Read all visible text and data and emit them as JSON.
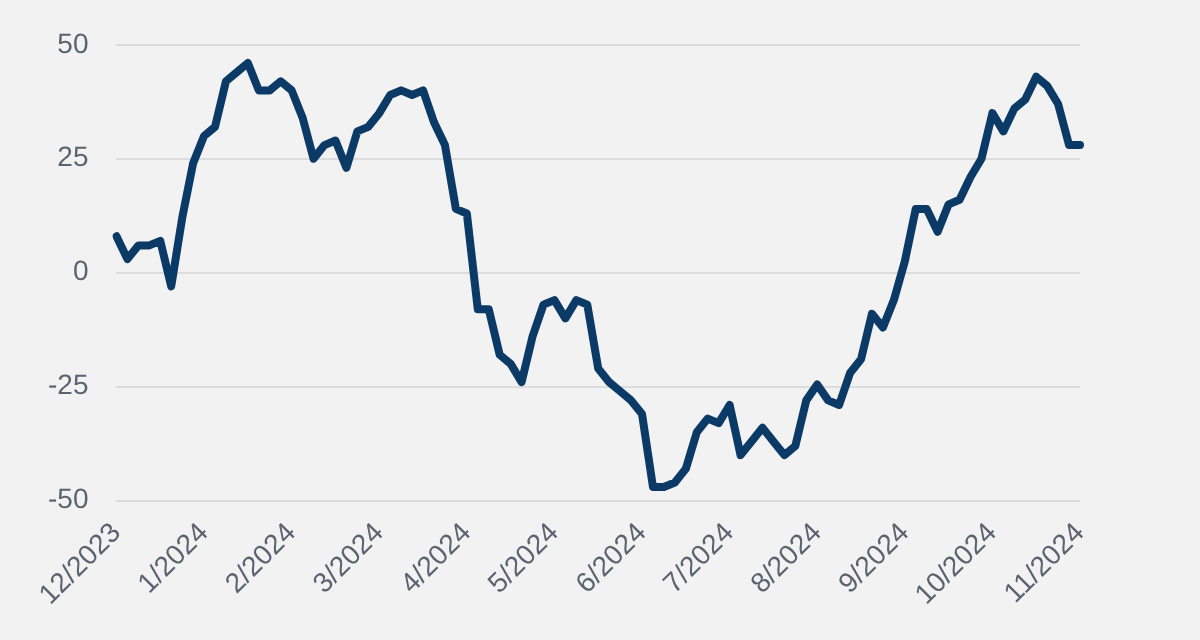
{
  "chart_data": {
    "type": "line",
    "categories": [
      "12/2023",
      null,
      null,
      null,
      null,
      null,
      null,
      null,
      "1/2024",
      null,
      null,
      null,
      null,
      null,
      null,
      null,
      "2/2024",
      null,
      null,
      null,
      null,
      null,
      null,
      null,
      "3/2024",
      null,
      null,
      null,
      null,
      null,
      null,
      null,
      "4/2024",
      null,
      null,
      null,
      null,
      null,
      null,
      null,
      "5/2024",
      null,
      null,
      null,
      null,
      null,
      null,
      null,
      "6/2024",
      null,
      null,
      null,
      null,
      null,
      null,
      null,
      "7/2024",
      null,
      null,
      null,
      null,
      null,
      null,
      null,
      "8/2024",
      null,
      null,
      null,
      null,
      null,
      null,
      null,
      "9/2024",
      null,
      null,
      null,
      null,
      null,
      null,
      null,
      "10/2024",
      null,
      null,
      null,
      null,
      null,
      null,
      null,
      "11/2024"
    ],
    "series": [
      {
        "color": "#0b3a66",
        "values": [
          8,
          3,
          6,
          6,
          7,
          -3,
          12,
          24,
          30,
          32,
          42,
          44,
          46,
          40,
          40,
          42,
          40,
          34,
          25,
          28,
          29,
          23,
          31,
          32,
          35,
          39,
          40,
          39,
          40,
          33,
          28,
          14,
          13,
          -8,
          -8,
          -18,
          -20,
          -24,
          -14,
          -7,
          -6,
          -10,
          -6,
          -7,
          -21,
          -24,
          -26,
          -28,
          -31,
          -47,
          -47,
          -46,
          -43,
          -35,
          -32,
          -33,
          -29,
          -40,
          -37,
          -34,
          -37,
          -40,
          -38,
          -28,
          -24.5,
          -28,
          -29,
          -22,
          -19,
          -9,
          -12,
          -6,
          2.5,
          14,
          14,
          9,
          15,
          16,
          21,
          25,
          35,
          31,
          36,
          38,
          43,
          41,
          37,
          28,
          28
        ]
      }
    ],
    "ylim": [
      -50,
      50
    ],
    "yticks": [
      -50,
      -25,
      0,
      25,
      50
    ],
    "grid": "y",
    "legend": false,
    "marker": "none",
    "line_style": "solid"
  }
}
